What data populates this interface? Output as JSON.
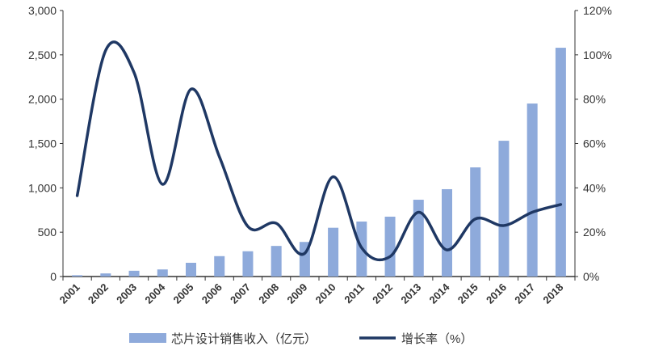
{
  "chart_data": {
    "type": "bar+line",
    "categories": [
      "2001",
      "2002",
      "2003",
      "2004",
      "2005",
      "2006",
      "2007",
      "2008",
      "2009",
      "2010",
      "2011",
      "2012",
      "2013",
      "2014",
      "2015",
      "2016",
      "2017",
      "2018"
    ],
    "series": [
      {
        "name": "芯片设计销售收入（亿元）",
        "type": "bar",
        "axis": "left",
        "color": "#8eaadb",
        "values": [
          15,
          35,
          65,
          80,
          155,
          230,
          285,
          345,
          390,
          550,
          620,
          675,
          866,
          985,
          1231,
          1531,
          1951,
          2580
        ]
      },
      {
        "name": "增长率（%）",
        "type": "line",
        "axis": "right",
        "color": "#1f3864",
        "smooth": true,
        "values": [
          36.5,
          102,
          92,
          41.6,
          84.5,
          54,
          22.6,
          24,
          10.5,
          45,
          13,
          9,
          29,
          12,
          26,
          23,
          29,
          32.5
        ]
      }
    ],
    "y_left": {
      "range": [
        0,
        3000
      ],
      "ticks": [
        "0",
        "500",
        "1,000",
        "1,500",
        "2,000",
        "2,500",
        "3,000"
      ]
    },
    "y_right": {
      "range": [
        0,
        120
      ],
      "ticks": [
        "0%",
        "20%",
        "40%",
        "60%",
        "80%",
        "100%",
        "120%"
      ]
    },
    "grid": false,
    "legend": "bottom"
  }
}
